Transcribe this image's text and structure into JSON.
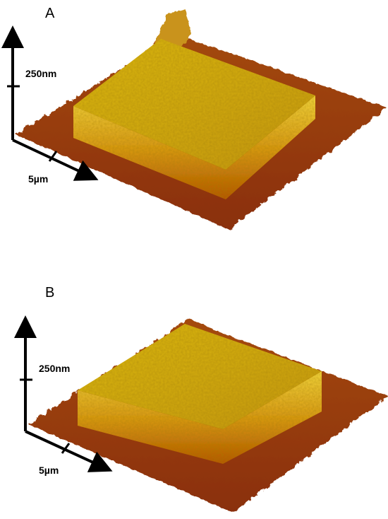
{
  "panels": [
    {
      "label": "A",
      "z_scale": "250nm",
      "xy_scale": "5µm"
    },
    {
      "label": "B",
      "z_scale": "250nm",
      "xy_scale": "5µm"
    }
  ]
}
